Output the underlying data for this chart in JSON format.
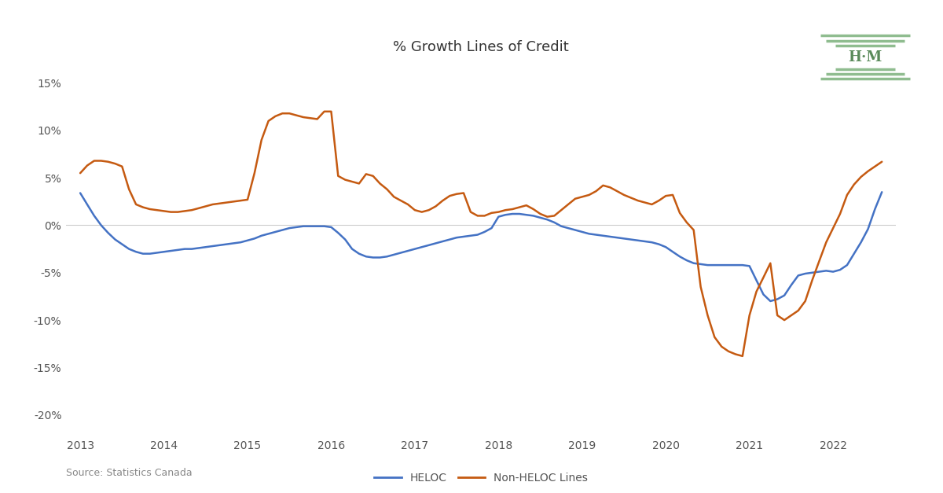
{
  "title": "% Growth Lines of Credit",
  "source_text": "Source: Statistics Canada",
  "background_color": "#ffffff",
  "heloc_color": "#4472c4",
  "nonheloc_color": "#c55a11",
  "line_width": 1.8,
  "ylim": [
    -0.22,
    0.17
  ],
  "yticks": [
    -0.2,
    -0.15,
    -0.1,
    -0.05,
    0.0,
    0.05,
    0.1,
    0.15
  ],
  "heloc_x": [
    2013.0,
    2013.083,
    2013.167,
    2013.25,
    2013.333,
    2013.417,
    2013.5,
    2013.583,
    2013.667,
    2013.75,
    2013.833,
    2013.917,
    2014.0,
    2014.083,
    2014.167,
    2014.25,
    2014.333,
    2014.417,
    2014.5,
    2014.583,
    2014.667,
    2014.75,
    2014.833,
    2014.917,
    2015.0,
    2015.083,
    2015.167,
    2015.25,
    2015.333,
    2015.417,
    2015.5,
    2015.583,
    2015.667,
    2015.75,
    2015.833,
    2015.917,
    2016.0,
    2016.083,
    2016.167,
    2016.25,
    2016.333,
    2016.417,
    2016.5,
    2016.583,
    2016.667,
    2016.75,
    2016.833,
    2016.917,
    2017.0,
    2017.083,
    2017.167,
    2017.25,
    2017.333,
    2017.417,
    2017.5,
    2017.583,
    2017.667,
    2017.75,
    2017.833,
    2017.917,
    2018.0,
    2018.083,
    2018.167,
    2018.25,
    2018.333,
    2018.417,
    2018.5,
    2018.583,
    2018.667,
    2018.75,
    2018.833,
    2018.917,
    2019.0,
    2019.083,
    2019.167,
    2019.25,
    2019.333,
    2019.417,
    2019.5,
    2019.583,
    2019.667,
    2019.75,
    2019.833,
    2019.917,
    2020.0,
    2020.083,
    2020.167,
    2020.25,
    2020.333,
    2020.417,
    2020.5,
    2020.583,
    2020.667,
    2020.75,
    2020.833,
    2020.917,
    2021.0,
    2021.083,
    2021.167,
    2021.25,
    2021.333,
    2021.417,
    2021.5,
    2021.583,
    2021.667,
    2021.75,
    2021.833,
    2021.917,
    2022.0,
    2022.083,
    2022.167,
    2022.25,
    2022.333,
    2022.417,
    2022.5,
    2022.583
  ],
  "heloc_y": [
    0.034,
    0.022,
    0.01,
    0.0,
    -0.008,
    -0.015,
    -0.02,
    -0.025,
    -0.028,
    -0.03,
    -0.03,
    -0.029,
    -0.028,
    -0.027,
    -0.026,
    -0.025,
    -0.025,
    -0.024,
    -0.023,
    -0.022,
    -0.021,
    -0.02,
    -0.019,
    -0.018,
    -0.016,
    -0.014,
    -0.011,
    -0.009,
    -0.007,
    -0.005,
    -0.003,
    -0.002,
    -0.001,
    -0.001,
    -0.001,
    -0.001,
    -0.002,
    -0.008,
    -0.015,
    -0.025,
    -0.03,
    -0.033,
    -0.034,
    -0.034,
    -0.033,
    -0.031,
    -0.029,
    -0.027,
    -0.025,
    -0.023,
    -0.021,
    -0.019,
    -0.017,
    -0.015,
    -0.013,
    -0.012,
    -0.011,
    -0.01,
    -0.007,
    -0.003,
    0.009,
    0.011,
    0.012,
    0.012,
    0.011,
    0.01,
    0.008,
    0.006,
    0.003,
    -0.001,
    -0.003,
    -0.005,
    -0.007,
    -0.009,
    -0.01,
    -0.011,
    -0.012,
    -0.013,
    -0.014,
    -0.015,
    -0.016,
    -0.017,
    -0.018,
    -0.02,
    -0.023,
    -0.028,
    -0.033,
    -0.037,
    -0.04,
    -0.041,
    -0.042,
    -0.042,
    -0.042,
    -0.042,
    -0.042,
    -0.042,
    -0.043,
    -0.058,
    -0.073,
    -0.08,
    -0.078,
    -0.074,
    -0.063,
    -0.053,
    -0.051,
    -0.05,
    -0.049,
    -0.048,
    -0.049,
    -0.047,
    -0.042,
    -0.03,
    -0.018,
    -0.004,
    0.017,
    0.035
  ],
  "nonheloc_x": [
    2013.0,
    2013.083,
    2013.167,
    2013.25,
    2013.333,
    2013.417,
    2013.5,
    2013.583,
    2013.667,
    2013.75,
    2013.833,
    2013.917,
    2014.0,
    2014.083,
    2014.167,
    2014.25,
    2014.333,
    2014.417,
    2014.5,
    2014.583,
    2014.667,
    2014.75,
    2014.833,
    2014.917,
    2015.0,
    2015.083,
    2015.167,
    2015.25,
    2015.333,
    2015.417,
    2015.5,
    2015.583,
    2015.667,
    2015.75,
    2015.833,
    2015.917,
    2016.0,
    2016.083,
    2016.167,
    2016.25,
    2016.333,
    2016.417,
    2016.5,
    2016.583,
    2016.667,
    2016.75,
    2016.833,
    2016.917,
    2017.0,
    2017.083,
    2017.167,
    2017.25,
    2017.333,
    2017.417,
    2017.5,
    2017.583,
    2017.667,
    2017.75,
    2017.833,
    2017.917,
    2018.0,
    2018.083,
    2018.167,
    2018.25,
    2018.333,
    2018.417,
    2018.5,
    2018.583,
    2018.667,
    2018.75,
    2018.833,
    2018.917,
    2019.0,
    2019.083,
    2019.167,
    2019.25,
    2019.333,
    2019.417,
    2019.5,
    2019.583,
    2019.667,
    2019.75,
    2019.833,
    2019.917,
    2020.0,
    2020.083,
    2020.167,
    2020.25,
    2020.333,
    2020.417,
    2020.5,
    2020.583,
    2020.667,
    2020.75,
    2020.833,
    2020.917,
    2021.0,
    2021.083,
    2021.167,
    2021.25,
    2021.333,
    2021.417,
    2021.5,
    2021.583,
    2021.667,
    2021.75,
    2021.833,
    2021.917,
    2022.0,
    2022.083,
    2022.167,
    2022.25,
    2022.333,
    2022.417,
    2022.5,
    2022.583
  ],
  "nonheloc_y": [
    0.055,
    0.063,
    0.068,
    0.068,
    0.067,
    0.065,
    0.062,
    0.038,
    0.022,
    0.019,
    0.017,
    0.016,
    0.015,
    0.014,
    0.014,
    0.015,
    0.016,
    0.018,
    0.02,
    0.022,
    0.023,
    0.024,
    0.025,
    0.026,
    0.027,
    0.055,
    0.09,
    0.11,
    0.115,
    0.118,
    0.118,
    0.116,
    0.114,
    0.113,
    0.112,
    0.12,
    0.12,
    0.052,
    0.048,
    0.046,
    0.044,
    0.054,
    0.052,
    0.044,
    0.038,
    0.03,
    0.026,
    0.022,
    0.016,
    0.014,
    0.016,
    0.02,
    0.026,
    0.031,
    0.033,
    0.034,
    0.014,
    0.01,
    0.01,
    0.013,
    0.014,
    0.016,
    0.017,
    0.019,
    0.021,
    0.017,
    0.012,
    0.009,
    0.01,
    0.016,
    0.022,
    0.028,
    0.03,
    0.032,
    0.036,
    0.042,
    0.04,
    0.036,
    0.032,
    0.029,
    0.026,
    0.024,
    0.022,
    0.026,
    0.031,
    0.032,
    0.013,
    0.003,
    -0.005,
    -0.065,
    -0.095,
    -0.118,
    -0.128,
    -0.133,
    -0.136,
    -0.138,
    -0.095,
    -0.07,
    -0.055,
    -0.04,
    -0.095,
    -0.1,
    -0.095,
    -0.09,
    -0.08,
    -0.058,
    -0.038,
    -0.018,
    -0.003,
    0.012,
    0.032,
    0.043,
    0.051,
    0.057,
    0.062,
    0.067
  ],
  "logo_color": "#8fbc8f",
  "logo_text_color": "#5a8a5a"
}
